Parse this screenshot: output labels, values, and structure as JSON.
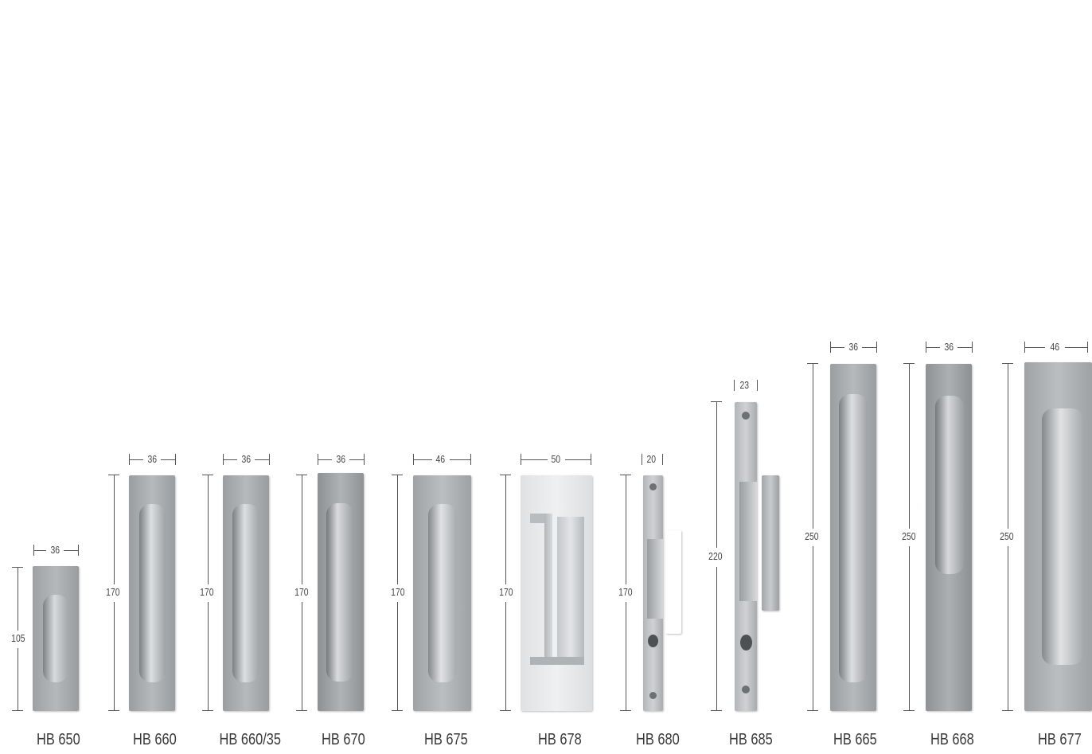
{
  "products": [
    {
      "name": "HB 650",
      "width_label": "36",
      "height_label": "105"
    },
    {
      "name": "HB 660",
      "width_label": "36",
      "height_label": "170"
    },
    {
      "name": "HB 660/35",
      "width_label": "36",
      "height_label": "170"
    },
    {
      "name": "HB 670",
      "width_label": "36",
      "height_label": "170"
    },
    {
      "name": "HB 675",
      "width_label": "46",
      "height_label": "170"
    },
    {
      "name": "HB 678",
      "width_label": "50",
      "height_label": "170"
    },
    {
      "name": "HB 680",
      "width_label": "20",
      "height_label": "170"
    },
    {
      "name": "HB 685",
      "width_label": "23",
      "height_label": "220"
    },
    {
      "name": "HB 665",
      "width_label": "36",
      "height_label": "250"
    },
    {
      "name": "HB 668",
      "width_label": "36",
      "height_label": "250"
    },
    {
      "name": "HB 677",
      "width_label": "46",
      "height_label": "250"
    }
  ],
  "colors": {
    "metal": "#a9acaf",
    "metal_light": "#c9ccce",
    "metal_dark": "#8a8d90",
    "line": "#555555"
  }
}
